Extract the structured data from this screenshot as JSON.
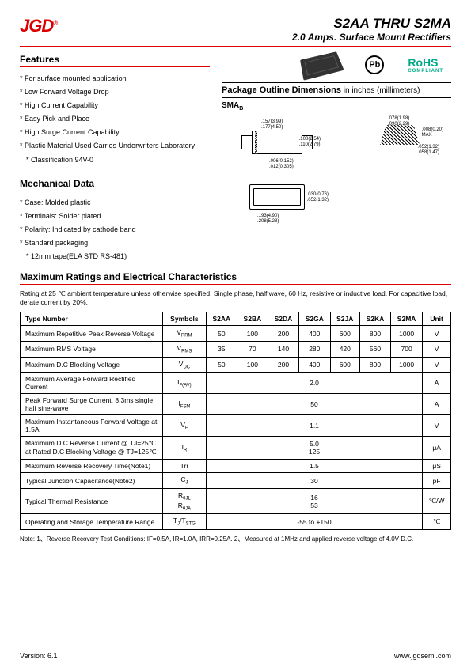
{
  "header": {
    "logo_text": "JGD",
    "title": "S2AA THRU S2MA",
    "subtitle": "2.0 Amps. Surface Mount Rectifiers"
  },
  "features": {
    "heading": "Features",
    "items": [
      "For surface mounted application",
      "Low Forward Voltage Drop",
      "High Current Capability",
      "Easy Pick and Place",
      "High Surge Current Capability",
      "Plastic Material Used Carries Underwriters Laboratory",
      "Classification 94V-0"
    ]
  },
  "mechanical": {
    "heading": "Mechanical Data",
    "items": [
      "Case: Molded plastic",
      "Terminals: Solder plated",
      "Polarity: Indicated by cathode band",
      "Standard packaging:",
      "12mm tape(ELA STD RS-481)"
    ]
  },
  "badges": {
    "pb": "Pb",
    "rohs": "RoHS",
    "rohs_sub": "COMPLIANT"
  },
  "package": {
    "heading": "Package Outline Dimensions",
    "heading_light": " in inches (millimeters)",
    "label": "SMAB",
    "dims": {
      "w1a": ".157(3.99)",
      "w1b": ".177(4.50)",
      "h1a": ".100(2.54)",
      "h1b": ".110(2.79)",
      "t1a": ".006(0.152)",
      "t1b": ".012(0.305)",
      "tw1a": ".078(1.98)",
      "tw1b": ".090(2.29)",
      "th1a": ".008(0.20)",
      "th1b": "MAX",
      "tb1a": ".052(1.32)",
      "tb1b": ".058(1.47)",
      "bw1a": ".193(4.90)",
      "bw1b": ".208(5.28)",
      "br1a": ".030(0.76)",
      "br1b": ".052(1.32)"
    }
  },
  "ratings": {
    "heading": "Maximum Ratings and Electrical Characteristics",
    "note": "Rating at 25 ℃ ambient temperature unless otherwise specified. Single phase, half wave, 60 Hz, resistive or inductive load. For capacitive load, derate current by 20%.",
    "columns": [
      "Type Number",
      "Symbols",
      "S2AA",
      "S2BA",
      "S2DA",
      "S2GA",
      "S2JA",
      "S2KA",
      "S2MA",
      "Unit"
    ],
    "rows": [
      {
        "name": "Maximum Repetitive Peak Reverse Voltage",
        "sym": "VRRM",
        "vals": [
          "50",
          "100",
          "200",
          "400",
          "600",
          "800",
          "1000"
        ],
        "unit": "V"
      },
      {
        "name": "Maximum RMS Voltage",
        "sym": "VRMS",
        "vals": [
          "35",
          "70",
          "140",
          "280",
          "420",
          "560",
          "700"
        ],
        "unit": "V"
      },
      {
        "name": "Maximum D.C Blocking Voltage",
        "sym": "VDC",
        "vals": [
          "50",
          "100",
          "200",
          "400",
          "600",
          "800",
          "1000"
        ],
        "unit": "V"
      },
      {
        "name": "Maximum Average Forward Rectified Current",
        "sym": "IF(AV)",
        "merged": "2.0",
        "unit": "A"
      },
      {
        "name": "Peak Forward Surge Current, 8.3ms single half sine-wave",
        "sym": "IFSM",
        "merged": "50",
        "unit": "A"
      },
      {
        "name": "Maximum Instantaneous Forward Voltage at 1.5A",
        "sym": "VF",
        "merged": "1.1",
        "unit": "V"
      },
      {
        "name": "Maximum D.C Reverse Current @ TJ=25℃\nat Rated D.C Blocking Voltage @ TJ=125℃",
        "sym": "IR",
        "merged": "5.0\n125",
        "unit": "μA"
      },
      {
        "name": "Maximum Reverse Recovery Time(Note1)",
        "sym": "Trr",
        "merged": "1.5",
        "unit": "μS"
      },
      {
        "name": "Typical Junction Capacitance(Note2)",
        "sym": "CJ",
        "merged": "30",
        "unit": "pF"
      },
      {
        "name": "Typical Thermal Resistance",
        "sym": "RθJL\nRθJA",
        "merged": "16\n53",
        "unit": "℃/W"
      },
      {
        "name": "Operating and Storage Temperature Range",
        "sym": "TJ/TSTG",
        "merged": "-55 to +150",
        "unit": "℃"
      }
    ],
    "footnote": "Note: 1、Reverse Recovery Test Conditions: IF=0.5A, IR=1.0A, IRR=0.25A.    2、Measured at 1MHz and applied reverse voltage of 4.0V D.C."
  },
  "footer": {
    "version": "Version: 6.1",
    "url": "www.jgdsemi.com"
  }
}
